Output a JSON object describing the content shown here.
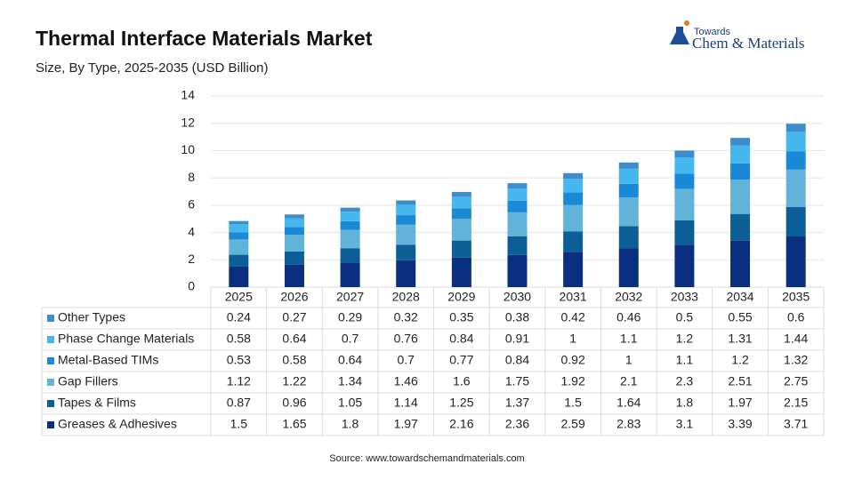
{
  "chart_data": {
    "type": "stacked_bar",
    "title": "Thermal Interface Materials Market",
    "subtitle": "Size, By Type, 2025-2035 (USD Billion)",
    "logo": {
      "line1": "Towards",
      "line2": "Chem & Materials"
    },
    "source": "Source: www.towardschemandmaterials.com",
    "categories": [
      "2025",
      "2026",
      "2027",
      "2028",
      "2029",
      "2030",
      "2031",
      "2032",
      "2033",
      "2034",
      "2035"
    ],
    "series": [
      {
        "name": "Other Types",
        "color": "#3d8ccc",
        "values": [
          0.24,
          0.27,
          0.29,
          0.32,
          0.35,
          0.38,
          0.42,
          0.46,
          0.5,
          0.55,
          0.6
        ]
      },
      {
        "name": "Phase Change Materials",
        "color": "#45b6ee",
        "values": [
          0.58,
          0.64,
          0.7,
          0.76,
          0.84,
          0.91,
          1,
          1.1,
          1.2,
          1.31,
          1.44
        ]
      },
      {
        "name": "Metal-Based TIMs",
        "color": "#1a8ad6",
        "values": [
          0.53,
          0.58,
          0.64,
          0.7,
          0.77,
          0.84,
          0.92,
          1,
          1.1,
          1.2,
          1.32
        ]
      },
      {
        "name": "Gap Fillers",
        "color": "#62b3da",
        "values": [
          1.12,
          1.22,
          1.34,
          1.46,
          1.6,
          1.75,
          1.92,
          2.1,
          2.3,
          2.51,
          2.75
        ]
      },
      {
        "name": "Tapes & Films",
        "color": "#0b5f96",
        "values": [
          0.87,
          0.96,
          1.05,
          1.14,
          1.25,
          1.37,
          1.5,
          1.64,
          1.8,
          1.97,
          2.15
        ]
      },
      {
        "name": "Greases & Adhesives",
        "color": "#0a2f80",
        "values": [
          1.5,
          1.65,
          1.8,
          1.97,
          2.16,
          2.36,
          2.59,
          2.83,
          3.1,
          3.39,
          3.71
        ]
      }
    ],
    "ylim": [
      0,
      14
    ],
    "yticks": [
      0,
      2,
      4,
      6,
      8,
      10,
      12,
      14
    ],
    "grid": true
  }
}
